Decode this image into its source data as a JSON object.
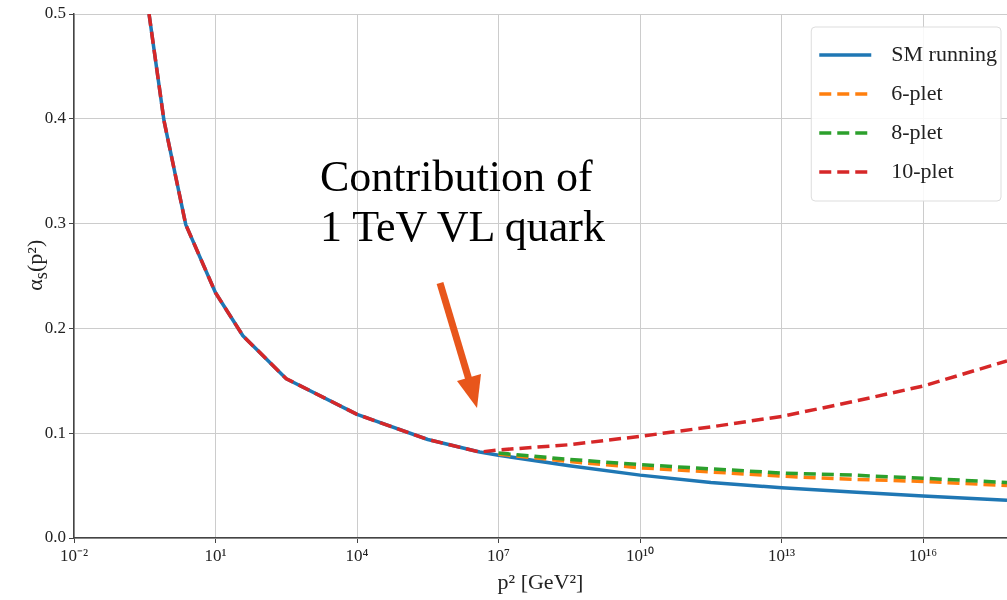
{
  "chart_data": {
    "type": "line",
    "xlabel": "p² [GeV²]",
    "ylabel": "α$_{s}$(p²)",
    "x": [
      0.39,
      0.81,
      2.34,
      10,
      38,
      316,
      10000,
      316228,
      3980000,
      10000000,
      316000000,
      10000000000,
      316000000000,
      10000000000000,
      316000000000000,
      10000000000000000,
      600000000000000000
    ],
    "series": [
      {
        "name": "SM running",
        "color": "#1f77b4",
        "line_style": "solid",
        "values": [
          0.5,
          0.398,
          0.299,
          0.234,
          0.193,
          0.152,
          0.118,
          0.094,
          0.082,
          0.079,
          0.069,
          0.06,
          0.053,
          0.048,
          0.044,
          0.04,
          0.036
        ]
      },
      {
        "name": "6-plet",
        "color": "#ff7f0e",
        "line_style": "dashed",
        "values": [
          null,
          null,
          null,
          null,
          null,
          null,
          null,
          null,
          null,
          0.08,
          0.073,
          0.067,
          0.063,
          0.059,
          0.056,
          0.054,
          0.05
        ]
      },
      {
        "name": "8-plet",
        "color": "#2ca02c",
        "line_style": "dashed",
        "values": [
          null,
          null,
          null,
          null,
          null,
          null,
          null,
          null,
          null,
          0.081,
          0.075,
          0.07,
          0.066,
          0.062,
          0.06,
          0.057,
          0.053
        ]
      },
      {
        "name": "10-plet",
        "color": "#d62728",
        "line_style": "dashed",
        "values": [
          0.5,
          0.398,
          0.299,
          0.234,
          0.193,
          0.152,
          0.118,
          0.094,
          0.082,
          0.084,
          0.089,
          0.097,
          0.106,
          0.116,
          0.13,
          0.145,
          0.169
        ]
      }
    ],
    "log": "x",
    "xlim": [
      0.01,
      600000000000000000
    ],
    "xticks": [
      {
        "value": 0.01,
        "label": "10⁻²"
      },
      {
        "value": 10,
        "label": "10¹"
      },
      {
        "value": 10000,
        "label": "10⁴"
      },
      {
        "value": 10000000,
        "label": "10⁷"
      },
      {
        "value": 10000000000,
        "label": "10¹⁰"
      },
      {
        "value": 10000000000000,
        "label": "10¹³"
      },
      {
        "value": 10000000000000000,
        "label": "10¹⁶"
      }
    ],
    "ylim": [
      0,
      0.5
    ],
    "yticks": [
      {
        "value": 0,
        "label": "0.0"
      },
      0.1,
      0.2,
      0.3,
      0.4,
      0.5
    ],
    "grid": true,
    "legend": "top right",
    "annotations": [
      "Contribution of 1 TeV VL quark"
    ]
  }
}
